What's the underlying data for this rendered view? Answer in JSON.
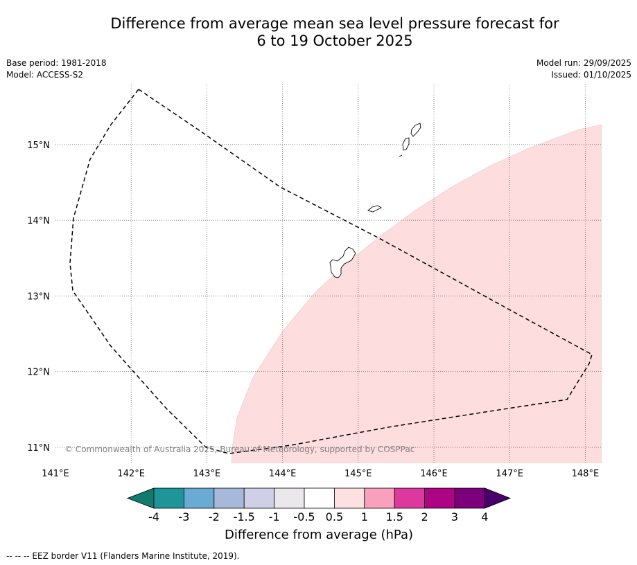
{
  "title": {
    "line1": "Difference from average mean sea level pressure forecast for",
    "line2": "6 to 19 October 2025"
  },
  "meta": {
    "base_period": "Base period: 1981-2018",
    "model": "Model: ACCESS-S2",
    "model_run": "Model run: 29/09/2025",
    "issued": "Issued: 01/10/2025"
  },
  "map": {
    "lon_range": [
      141.0,
      148.2
    ],
    "lat_range": [
      10.8,
      15.8
    ],
    "lon_ticks": [
      "141°E",
      "142°E",
      "143°E",
      "144°E",
      "145°E",
      "146°E",
      "147°E",
      "148°E"
    ],
    "lat_ticks": [
      "15°N",
      "14°N",
      "13°N",
      "12°N",
      "11°N"
    ],
    "anomaly_fill_color": "#fdddde",
    "anomaly_fill_category": "0.5 to 1",
    "eez_style": "dashed",
    "credit": "© Commonwealth of Australia 2025, Bureau of Meteorology, supported by COSPPac"
  },
  "colorbar": {
    "title": "Difference from average (hPa)",
    "tick_labels": [
      "-4",
      "-3",
      "-2",
      "-1.5",
      "-1",
      "-0.5",
      "0.5",
      "1",
      "1.5",
      "2",
      "3",
      "4"
    ],
    "colors": [
      "#137a70",
      "#1d9599",
      "#6aabd4",
      "#a6b9da",
      "#cfcfe5",
      "#ebe8ec",
      "#ffffff",
      "#fde0e1",
      "#f9a0bc",
      "#dc389e",
      "#ac0483",
      "#7c007c",
      "#49006a"
    ]
  },
  "footer": {
    "eez_legend": "--  --  -- EEZ border V11 (Flanders Marine Institute, 2019)."
  }
}
